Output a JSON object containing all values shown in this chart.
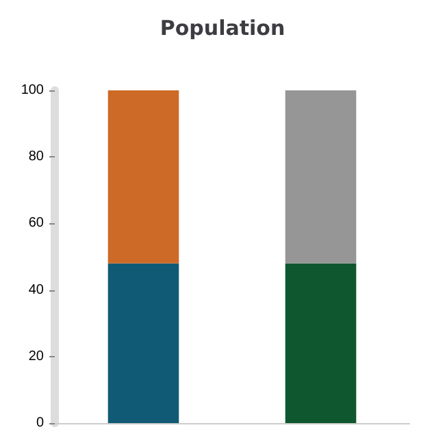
{
  "chart_data": {
    "type": "bar",
    "title": "Population",
    "stacked": true,
    "categories": [
      null,
      null
    ],
    "series": [
      {
        "colors": [
          "#115a75",
          "#0f572e"
        ],
        "values": [
          48,
          48
        ]
      },
      {
        "colors": [
          "#cd6a27",
          "#969696"
        ],
        "values": [
          52,
          52
        ]
      }
    ],
    "ylim": [
      0,
      100
    ],
    "yticks": [
      0,
      20,
      40,
      60,
      80,
      100
    ],
    "grid": false
  }
}
